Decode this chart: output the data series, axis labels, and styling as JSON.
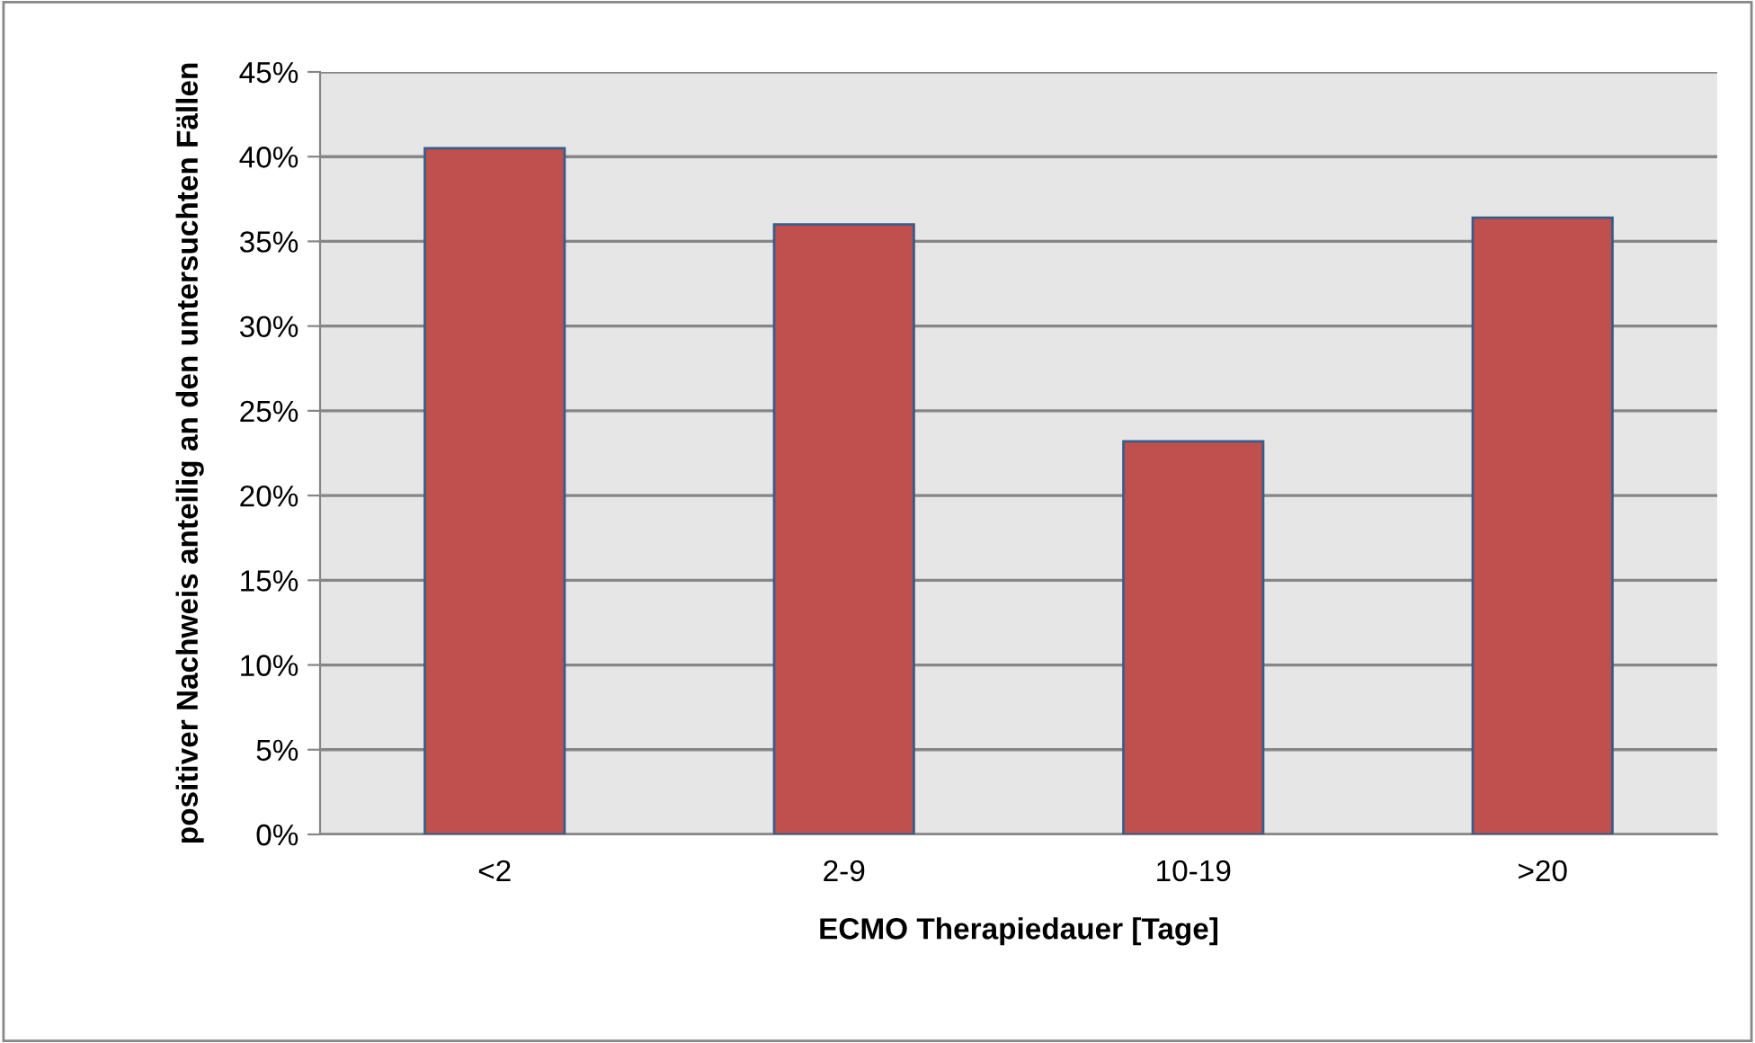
{
  "chart_data": {
    "type": "bar",
    "xlabel": "ECMO Therapiedauer [Tage]",
    "ylabel": "positiver Nachweis anteilig an den untersuchten Fällen",
    "categories": [
      "<2",
      "2-9",
      "10-19",
      ">20"
    ],
    "values": [
      40.5,
      36.0,
      23.2,
      36.4
    ],
    "color": "#c0504d",
    "ylim": [
      0,
      45
    ],
    "yticks": [
      {
        "value": 0,
        "label": "0%"
      },
      {
        "value": 5,
        "label": "5%"
      },
      {
        "value": 10,
        "label": "10%"
      },
      {
        "value": 15,
        "label": "15%"
      },
      {
        "value": 20,
        "label": "20%"
      },
      {
        "value": 25,
        "label": "25%"
      },
      {
        "value": 30,
        "label": "30%"
      },
      {
        "value": 35,
        "label": "35%"
      },
      {
        "value": 40,
        "label": "40%"
      },
      {
        "value": 45,
        "label": "45%"
      }
    ],
    "grid": "y"
  }
}
